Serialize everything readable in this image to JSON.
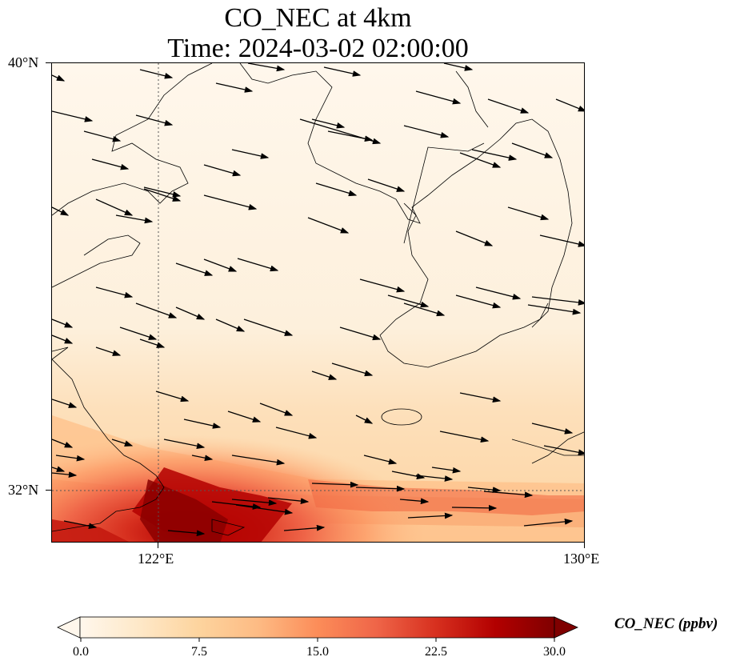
{
  "title": {
    "line1": "CO_NEC at 4km",
    "line2": "Time: 2024-03-02 02:00:00"
  },
  "axes": {
    "lat_labels": [
      "40°N",
      "32°N"
    ],
    "lon_labels": [
      "122°E",
      "130°E"
    ]
  },
  "colorbar": {
    "label": "CO_NEC (ppbv)",
    "ticks": [
      "0.0",
      "7.5",
      "15.0",
      "22.5",
      "30.0"
    ],
    "colormap": "OrRd",
    "min": 0,
    "max": 30,
    "extend": "both"
  },
  "colors": {
    "low": "#fff7ec",
    "mid": "#fc8d59",
    "high": "#7f0000",
    "coastline": "#000000",
    "arrows": "#000000"
  },
  "chart_data": {
    "type": "heatmap",
    "variable": "CO_NEC",
    "units": "ppbv",
    "level": "4km",
    "time": "2024-03-02 02:00:00",
    "lon_range": [
      120,
      130
    ],
    "lat_range": [
      31,
      40
    ],
    "gridlines": {
      "lon": [
        122
      ],
      "lat": [
        32
      ],
      "style": "dotted"
    },
    "overlay": "wind vectors (mostly west-northwesterly, pointing east-southeast)",
    "high_region": "southwest corner near 31–32°N, 121–124°E, values up to 30"
  }
}
